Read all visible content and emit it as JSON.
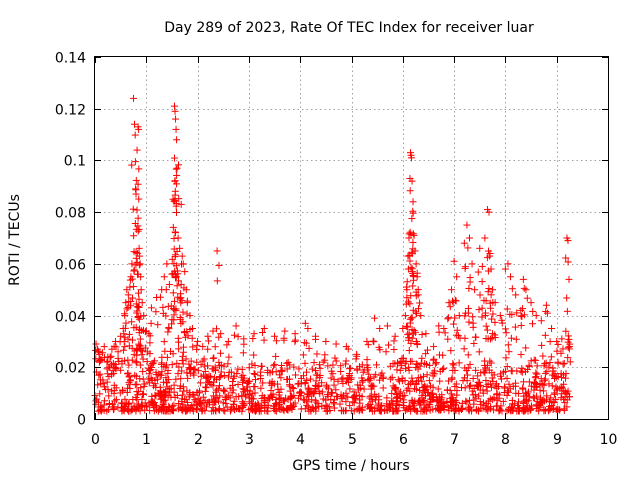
{
  "chart_data": {
    "type": "scatter",
    "title": "Day 289 of 2023, Rate Of TEC Index for receiver luar",
    "xlabel": "GPS time / hours",
    "ylabel": "ROTI / TECUs",
    "xlim": [
      0,
      10
    ],
    "ylim": [
      0,
      0.14
    ],
    "xticks": [
      "0",
      "1",
      "2",
      "3",
      "4",
      "5",
      "6",
      "7",
      "8",
      "9",
      "10"
    ],
    "yticks": [
      "0",
      "0.02",
      "0.04",
      "0.06",
      "0.08",
      "0.1",
      "0.12",
      "0.14"
    ],
    "grid": true,
    "marker": "+",
    "color": "#ff0000",
    "series": [
      {
        "name": "ROTI",
        "points": [
          [
            0.02,
            0.029
          ],
          [
            0.05,
            0.027
          ],
          [
            0.08,
            0.025
          ],
          [
            0.12,
            0.023
          ],
          [
            0.18,
            0.028
          ],
          [
            0.25,
            0.024
          ],
          [
            0.33,
            0.027
          ],
          [
            0.4,
            0.03
          ],
          [
            0.45,
            0.026
          ],
          [
            0.5,
            0.032
          ],
          [
            0.55,
            0.035
          ],
          [
            0.58,
            0.04
          ],
          [
            0.6,
            0.045
          ],
          [
            0.62,
            0.05
          ],
          [
            0.65,
            0.048
          ],
          [
            0.68,
            0.051
          ],
          [
            0.7,
            0.055
          ],
          [
            0.72,
            0.06
          ],
          [
            0.75,
            0.124
          ],
          [
            0.77,
            0.114
          ],
          [
            0.79,
            0.089
          ],
          [
            0.8,
            0.087
          ],
          [
            0.82,
            0.104
          ],
          [
            0.84,
            0.113
          ],
          [
            0.85,
            0.112
          ],
          [
            0.86,
            0.066
          ],
          [
            0.87,
            0.063
          ],
          [
            0.88,
            0.06
          ],
          [
            0.89,
            0.055
          ],
          [
            0.9,
            0.05
          ],
          [
            0.92,
            0.045
          ],
          [
            0.95,
            0.04
          ],
          [
            1.0,
            0.034
          ],
          [
            1.05,
            0.033
          ],
          [
            1.1,
            0.043
          ],
          [
            1.2,
            0.047
          ],
          [
            1.3,
            0.05
          ],
          [
            1.35,
            0.055
          ],
          [
            1.4,
            0.06
          ],
          [
            1.45,
            0.052
          ],
          [
            1.5,
            0.056
          ],
          [
            1.52,
            0.085
          ],
          [
            1.55,
            0.121
          ],
          [
            1.56,
            0.119
          ],
          [
            1.57,
            0.116
          ],
          [
            1.58,
            0.112
          ],
          [
            1.59,
            0.108
          ],
          [
            1.6,
            0.097
          ],
          [
            1.62,
            0.07
          ],
          [
            1.65,
            0.066
          ],
          [
            1.68,
            0.083
          ],
          [
            1.7,
            0.063
          ],
          [
            1.72,
            0.06
          ],
          [
            1.75,
            0.057
          ],
          [
            1.78,
            0.05
          ],
          [
            1.8,
            0.045
          ],
          [
            1.85,
            0.04
          ],
          [
            1.9,
            0.035
          ],
          [
            2.0,
            0.03
          ],
          [
            2.1,
            0.028
          ],
          [
            2.2,
            0.032
          ],
          [
            2.3,
            0.034
          ],
          [
            2.38,
            0.065
          ],
          [
            2.45,
            0.033
          ],
          [
            2.6,
            0.03
          ],
          [
            2.75,
            0.036
          ],
          [
            2.9,
            0.031
          ],
          [
            3.1,
            0.033
          ],
          [
            3.3,
            0.035
          ],
          [
            3.5,
            0.032
          ],
          [
            3.7,
            0.034
          ],
          [
            3.9,
            0.033
          ],
          [
            4.1,
            0.037
          ],
          [
            4.15,
            0.035
          ],
          [
            4.3,
            0.032
          ],
          [
            4.5,
            0.03
          ],
          [
            4.7,
            0.029
          ],
          [
            4.9,
            0.028
          ],
          [
            5.1,
            0.025
          ],
          [
            5.3,
            0.03
          ],
          [
            5.45,
            0.039
          ],
          [
            5.55,
            0.035
          ],
          [
            5.7,
            0.036
          ],
          [
            5.85,
            0.032
          ],
          [
            6.0,
            0.035
          ],
          [
            6.05,
            0.04
          ],
          [
            6.08,
            0.05
          ],
          [
            6.1,
            0.063
          ],
          [
            6.12,
            0.07
          ],
          [
            6.14,
            0.093
          ],
          [
            6.15,
            0.103
          ],
          [
            6.16,
            0.102
          ],
          [
            6.17,
            0.101
          ],
          [
            6.18,
            0.092
          ],
          [
            6.2,
            0.084
          ],
          [
            6.22,
            0.071
          ],
          [
            6.24,
            0.065
          ],
          [
            6.26,
            0.06
          ],
          [
            6.28,
            0.055
          ],
          [
            6.3,
            0.048
          ],
          [
            6.35,
            0.04
          ],
          [
            6.45,
            0.033
          ],
          [
            6.6,
            0.028
          ],
          [
            6.7,
            0.036
          ],
          [
            6.8,
            0.035
          ],
          [
            6.9,
            0.045
          ],
          [
            6.95,
            0.05
          ],
          [
            7.0,
            0.061
          ],
          [
            7.05,
            0.055
          ],
          [
            7.1,
            0.04
          ],
          [
            7.2,
            0.068
          ],
          [
            7.25,
            0.075
          ],
          [
            7.3,
            0.07
          ],
          [
            7.35,
            0.06
          ],
          [
            7.4,
            0.05
          ],
          [
            7.5,
            0.066
          ],
          [
            7.55,
            0.059
          ],
          [
            7.6,
            0.07
          ],
          [
            7.65,
            0.081
          ],
          [
            7.68,
            0.08
          ],
          [
            7.7,
            0.064
          ],
          [
            7.72,
            0.058
          ],
          [
            7.75,
            0.05
          ],
          [
            7.8,
            0.045
          ],
          [
            7.9,
            0.04
          ],
          [
            8.0,
            0.058
          ],
          [
            8.05,
            0.06
          ],
          [
            8.1,
            0.055
          ],
          [
            8.2,
            0.048
          ],
          [
            8.3,
            0.042
          ],
          [
            8.35,
            0.054
          ],
          [
            8.4,
            0.05
          ],
          [
            8.5,
            0.045
          ],
          [
            8.6,
            0.04
          ],
          [
            8.7,
            0.038
          ],
          [
            8.8,
            0.044
          ],
          [
            8.9,
            0.035
          ],
          [
            9.0,
            0.03
          ],
          [
            9.1,
            0.031
          ],
          [
            9.2,
            0.07
          ],
          [
            9.22,
            0.069
          ],
          [
            9.24,
            0.054
          ],
          [
            9.25,
            0.028
          ]
        ],
        "baseline_band": {
          "x_range": [
            0.0,
            9.25
          ],
          "y_range": [
            0.003,
            0.022
          ]
        }
      }
    ]
  }
}
